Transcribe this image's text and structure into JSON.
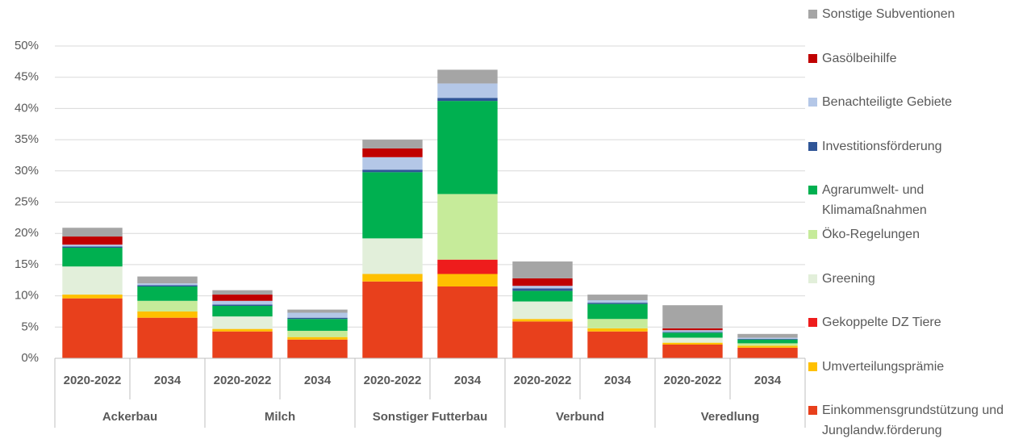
{
  "chart_data": {
    "type": "stacked-bar",
    "categories": [
      "2020-2022",
      "2034",
      "2020-2022",
      "2034",
      "2020-2022",
      "2034",
      "2020-2022",
      "2034",
      "2020-2022",
      "2034"
    ],
    "groups": [
      "Ackerbau",
      "Milch",
      "Sonstiger Futterbau",
      "Verbund",
      "Veredlung"
    ],
    "ylim": [
      0,
      50
    ],
    "yticks": [
      {
        "value": 0,
        "label": "0%"
      },
      {
        "value": 5,
        "label": "5%"
      },
      {
        "value": 10,
        "label": "10%"
      },
      {
        "value": 15,
        "label": "15%"
      },
      {
        "value": 20,
        "label": "20%"
      },
      {
        "value": 25,
        "label": "25%"
      },
      {
        "value": 30,
        "label": "30%"
      },
      {
        "value": 35,
        "label": "35%"
      },
      {
        "value": 40,
        "label": "40%"
      },
      {
        "value": 45,
        "label": "45%"
      },
      {
        "value": 50,
        "label": "50%"
      }
    ],
    "series": [
      {
        "name": "Einkommensgrundstützung und Junglandw.förderung",
        "color": "#e8401c",
        "values": [
          9.6,
          6.5,
          4.3,
          3.0,
          12.3,
          11.5,
          5.9,
          4.3,
          2.2,
          1.7
        ]
      },
      {
        "name": "Umverteilungsprämie",
        "color": "#ffc000",
        "values": [
          0.6,
          1.0,
          0.4,
          0.4,
          1.2,
          2.0,
          0.4,
          0.5,
          0.3,
          0.3
        ]
      },
      {
        "name": "Gekoppelte DZ Tiere",
        "color": "#ee1c1c",
        "values": [
          0,
          0,
          0,
          0,
          0,
          2.3,
          0,
          0,
          0,
          0
        ]
      },
      {
        "name": "Greening",
        "color": "#e2efda",
        "values": [
          4.5,
          0,
          2.0,
          0,
          5.7,
          0,
          2.8,
          0,
          0.8,
          0
        ]
      },
      {
        "name": "Öko-Regelungen",
        "color": "#c6eb9a",
        "values": [
          0,
          1.7,
          0,
          1.0,
          0,
          10.5,
          0,
          1.5,
          0,
          0.4
        ]
      },
      {
        "name": "Agrarumwelt- und Klimamaßnahmen",
        "color": "#00b050",
        "values": [
          3.0,
          2.3,
          1.7,
          1.9,
          10.6,
          14.9,
          1.7,
          2.4,
          0.8,
          0.6
        ]
      },
      {
        "name": "Investitionsförderung",
        "color": "#2f5597",
        "values": [
          0.2,
          0.2,
          0.2,
          0.2,
          0.4,
          0.5,
          0.4,
          0.2,
          0.1,
          0.1
        ]
      },
      {
        "name": "Benachteiligte Gebiete",
        "color": "#b4c7e7",
        "values": [
          0.3,
          0.3,
          0.6,
          0.8,
          2.0,
          2.3,
          0.4,
          0.4,
          0.3,
          0.2
        ]
      },
      {
        "name": "Gasölbeihilfe",
        "color": "#c00000",
        "values": [
          1.3,
          0,
          1.0,
          0,
          1.4,
          0,
          1.2,
          0,
          0.3,
          0
        ]
      },
      {
        "name": "Sonstige Subventionen",
        "color": "#a5a5a5",
        "values": [
          1.4,
          1.1,
          0.7,
          0.5,
          1.4,
          2.2,
          2.7,
          0.9,
          3.7,
          0.6
        ]
      }
    ]
  }
}
